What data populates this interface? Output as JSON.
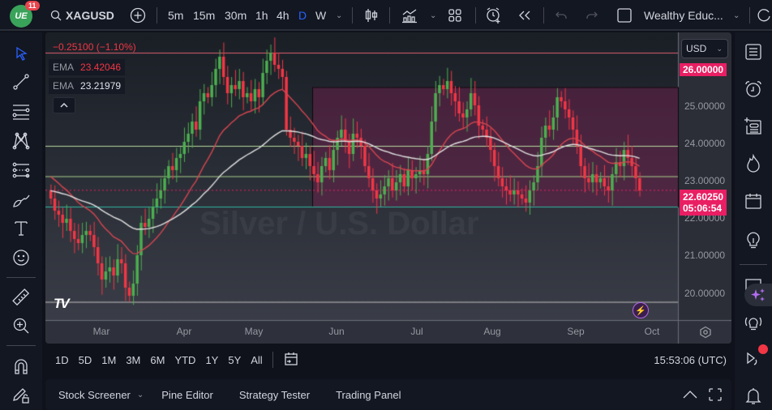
{
  "topbar": {
    "notification_count": "11",
    "symbol": "XAGUSD",
    "timeframes": [
      "5m",
      "15m",
      "30m",
      "1h",
      "4h",
      "D",
      "W"
    ],
    "active_timeframe": "D",
    "layout_name": "Wealthy Educ..."
  },
  "legend": {
    "change": "−0.25100 (−1.10%)",
    "ema1_label": "EMA",
    "ema1_value": "23.42046",
    "ema2_label": "EMA",
    "ema2_value": "23.21979",
    "collapse_glyph": "^"
  },
  "price_axis": {
    "currency": "USD",
    "labels": [
      "25.00000",
      "24.00000",
      "23.00000",
      "22.00000",
      "21.00000",
      "20.00000"
    ],
    "tag_top": "26.00000",
    "current_price": "22.60250",
    "countdown": "05:06:54"
  },
  "time_axis": {
    "months": [
      "Mar",
      "Apr",
      "May",
      "Jun",
      "Jul",
      "Aug",
      "Sep",
      "Oct"
    ]
  },
  "watermark": "Silver / U.S. Dollar",
  "range_bar": {
    "ranges": [
      "1D",
      "5D",
      "1M",
      "3M",
      "6M",
      "YTD",
      "1Y",
      "5Y",
      "All"
    ],
    "clock": "15:53:06 (UTC)"
  },
  "bottom_panel": {
    "tabs": [
      "Stock Screener",
      "Pine Editor",
      "Strategy Tester",
      "Trading Panel"
    ]
  },
  "colors": {
    "up": "#4caf50",
    "down": "#f23645",
    "ema_fast": "#d64550",
    "ema_slow": "#e0e0e0",
    "box_fill": "#4a2040",
    "accent": "#2962ff",
    "price_tag": "#e91e63"
  },
  "chart_data": {
    "type": "candlestick",
    "title": "Silver / U.S. Dollar (XAGUSD), 1D",
    "y_range": [
      19.4,
      26.5
    ],
    "x_months": [
      "Mar",
      "Apr",
      "May",
      "Jun",
      "Jul",
      "Aug",
      "Sep",
      "Oct"
    ],
    "horizontal_lines": [
      26.0,
      23.7,
      22.95,
      22.2,
      19.85
    ],
    "rectangle": {
      "x_start": "late May",
      "x_end": "right edge",
      "y_top": 25.15,
      "y_bottom": 22.2
    },
    "closes": [
      22.4,
      22.1,
      22.0,
      21.8,
      21.9,
      21.6,
      21.4,
      21.3,
      21.5,
      21.6,
      21.5,
      21.2,
      20.8,
      20.4,
      20.6,
      20.7,
      20.5,
      20.9,
      20.8,
      20.2,
      20.0,
      20.3,
      21.0,
      21.8,
      21.7,
      21.9,
      22.2,
      22.4,
      22.6,
      22.9,
      23.2,
      23.1,
      23.4,
      23.5,
      23.8,
      24.0,
      24.3,
      24.1,
      24.8,
      25.0,
      24.9,
      25.2,
      25.6,
      25.9,
      25.4,
      25.0,
      25.2,
      25.1,
      25.3,
      24.9,
      25.0,
      24.8,
      25.1,
      24.9,
      25.5,
      25.8,
      26.0,
      25.7,
      25.6,
      25.4,
      24.1,
      23.9,
      23.8,
      23.7,
      23.4,
      23.5,
      23.2,
      23.0,
      22.8,
      23.2,
      23.4,
      23.1,
      23.6,
      23.9,
      24.1,
      23.8,
      23.5,
      24.0,
      23.9,
      23.7,
      23.2,
      22.9,
      22.6,
      22.4,
      22.5,
      22.7,
      22.9,
      22.6,
      22.8,
      23.0,
      22.7,
      23.1,
      22.9,
      23.0,
      23.1,
      23.0,
      23.5,
      24.3,
      25.0,
      25.2,
      25.1,
      25.3,
      25.0,
      24.8,
      24.5,
      24.4,
      24.6,
      25.0,
      24.7,
      24.2,
      24.1,
      23.9,
      23.6,
      23.2,
      22.9,
      22.7,
      22.6,
      22.5,
      22.6,
      22.5,
      22.4,
      22.3,
      22.6,
      22.8,
      23.2,
      23.9,
      24.2,
      24.1,
      24.4,
      24.9,
      24.8,
      24.6,
      24.4,
      24.1,
      23.7,
      23.2,
      22.9,
      22.8,
      23.0,
      22.8,
      22.9,
      22.7,
      22.6,
      23.0,
      23.3,
      23.2,
      23.6,
      23.4,
      23.2,
      22.9,
      22.6
    ],
    "ema_fast_final": 23.42046,
    "ema_slow_final": 23.21979,
    "last_price": 22.6025
  }
}
